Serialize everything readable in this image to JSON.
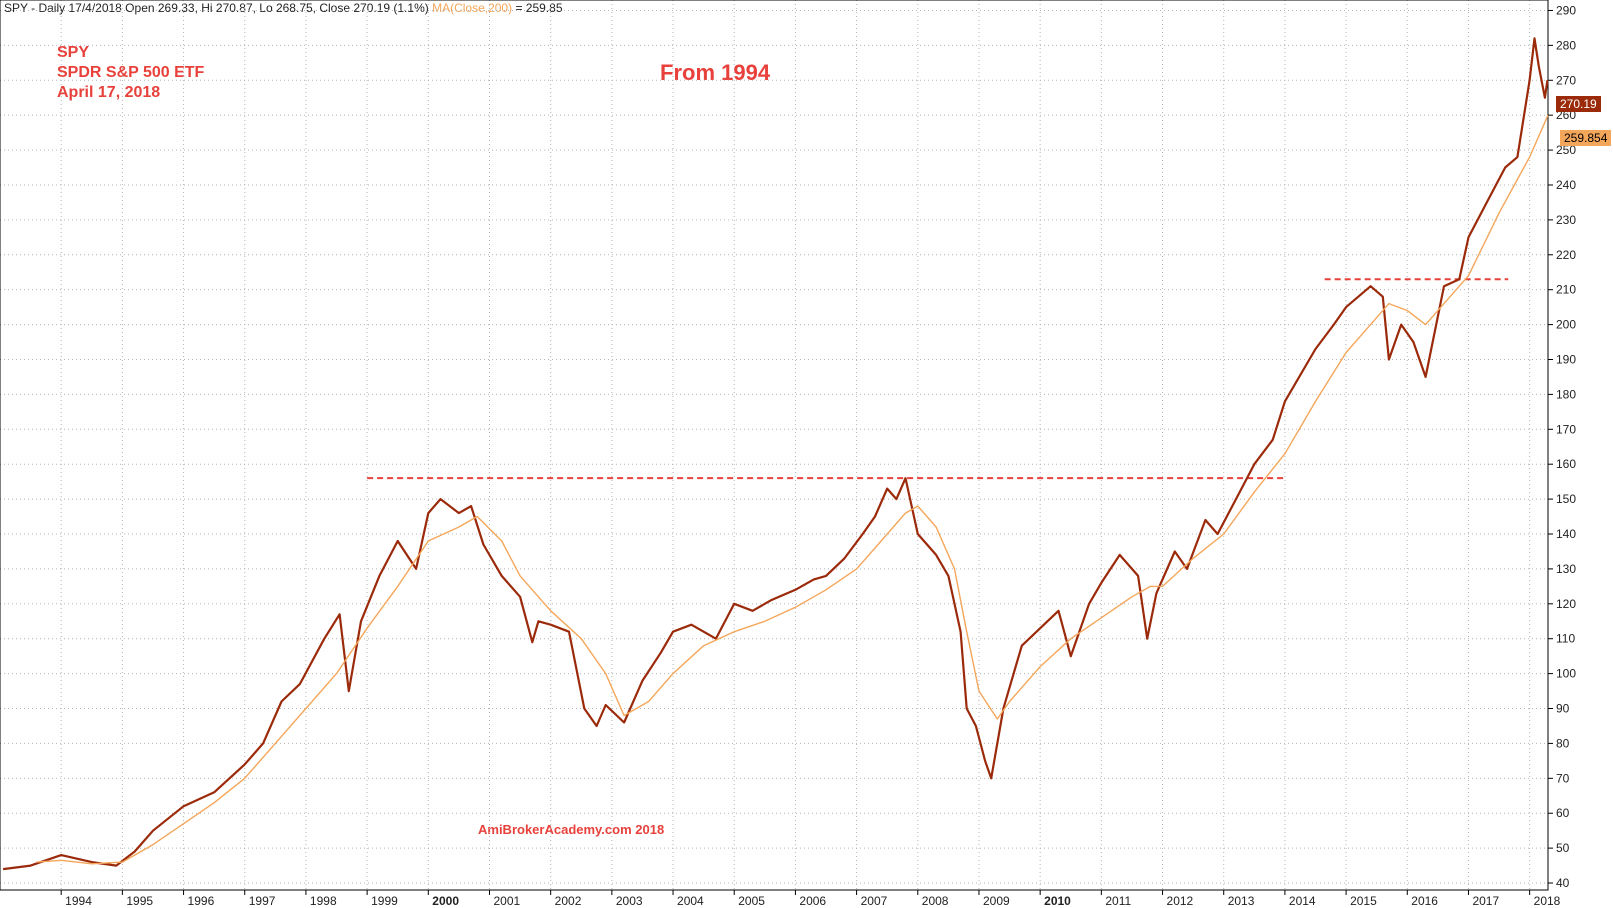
{
  "header": {
    "text": "SPY - Daily 17/4/2018 Open 269.33, Hi 270.87, Lo 268.75, Close 270.19 (1.1%)",
    "ma_label": "MA(Close,200)",
    "ma_value_text": " = 259.85"
  },
  "annotations": {
    "symbol": "SPY",
    "name": "SPDR S&P 500 ETF",
    "date": "April 17, 2018",
    "title": "From 1994",
    "watermark": "AmiBrokerAcademy.com  2018"
  },
  "badges": {
    "close": "270.19",
    "ma": "259.854"
  },
  "colors": {
    "price": "#9b2a0b",
    "ma": "#f4a65a",
    "resistance": "#e8413c",
    "grid": "#b4b4b4",
    "annotation": "#e8413c"
  },
  "chart_data": {
    "type": "line",
    "title": "",
    "xlabel": "",
    "ylabel": "",
    "ylim": [
      38,
      293
    ],
    "xlim": [
      1993.0,
      2018.3
    ],
    "yticks": [
      40,
      50,
      60,
      70,
      80,
      90,
      100,
      110,
      120,
      130,
      140,
      150,
      160,
      170,
      180,
      190,
      200,
      210,
      220,
      230,
      240,
      250,
      260,
      270,
      280,
      290
    ],
    "xticks": [
      "1994",
      "1995",
      "1996",
      "1997",
      "1998",
      "1999",
      "2000",
      "2001",
      "2002",
      "2003",
      "2004",
      "2005",
      "2006",
      "2007",
      "2008",
      "2009",
      "2010",
      "2011",
      "2012",
      "2013",
      "2014",
      "2015",
      "2016",
      "2017",
      "2018"
    ],
    "bold_xticks": [
      "2000",
      "2010"
    ],
    "grid": true,
    "y_axis_side": "right",
    "series": [
      {
        "style": "price",
        "x": [
          1993.05,
          1993.5,
          1994.0,
          1994.5,
          1994.9,
          1995.2,
          1995.5,
          1996.0,
          1996.5,
          1997.0,
          1997.3,
          1997.6,
          1997.9,
          1998.3,
          1998.55,
          1998.7,
          1998.9,
          1999.2,
          1999.5,
          1999.8,
          2000.0,
          2000.2,
          2000.5,
          2000.7,
          2000.9,
          2001.2,
          2001.5,
          2001.7,
          2001.8,
          2002.0,
          2002.3,
          2002.55,
          2002.75,
          2002.9,
          2003.2,
          2003.5,
          2003.8,
          2004.0,
          2004.3,
          2004.7,
          2005.0,
          2005.3,
          2005.6,
          2006.0,
          2006.3,
          2006.5,
          2006.8,
          2007.1,
          2007.3,
          2007.5,
          2007.65,
          2007.8,
          2008.0,
          2008.3,
          2008.5,
          2008.7,
          2008.8,
          2008.95,
          2009.1,
          2009.2,
          2009.4,
          2009.7,
          2010.0,
          2010.3,
          2010.5,
          2010.8,
          2011.0,
          2011.3,
          2011.6,
          2011.75,
          2011.9,
          2012.2,
          2012.4,
          2012.7,
          2012.9,
          2013.2,
          2013.5,
          2013.8,
          2014.0,
          2014.5,
          2014.8,
          2015.0,
          2015.4,
          2015.6,
          2015.7,
          2015.9,
          2016.1,
          2016.3,
          2016.6,
          2016.85,
          2017.0,
          2017.3,
          2017.6,
          2017.8,
          2018.0,
          2018.08,
          2018.15,
          2018.25,
          2018.29
        ],
        "y": [
          44,
          45,
          48,
          46,
          45,
          49,
          55,
          62,
          66,
          74,
          80,
          92,
          97,
          110,
          117,
          95,
          115,
          128,
          138,
          130,
          146,
          150,
          146,
          148,
          137,
          128,
          122,
          109,
          115,
          114,
          112,
          90,
          85,
          91,
          86,
          98,
          106,
          112,
          114,
          110,
          120,
          118,
          121,
          124,
          127,
          128,
          133,
          140,
          145,
          153,
          150,
          156,
          140,
          134,
          128,
          112,
          90,
          85,
          75,
          70,
          90,
          108,
          113,
          118,
          105,
          120,
          126,
          134,
          128,
          110,
          123,
          135,
          130,
          144,
          140,
          150,
          160,
          167,
          178,
          193,
          200,
          205,
          211,
          208,
          190,
          200,
          195,
          185,
          211,
          213,
          225,
          235,
          245,
          248,
          270,
          282,
          274,
          265,
          270
        ]
      },
      {
        "style": "ma",
        "x": [
          1993.6,
          1994.0,
          1994.5,
          1995.0,
          1995.5,
          1996.0,
          1996.5,
          1997.0,
          1997.5,
          1998.0,
          1998.5,
          1999.0,
          1999.5,
          2000.0,
          2000.5,
          2000.8,
          2001.2,
          2001.5,
          2002.0,
          2002.5,
          2002.9,
          2003.2,
          2003.6,
          2004.0,
          2004.5,
          2005.0,
          2005.5,
          2006.0,
          2006.5,
          2007.0,
          2007.3,
          2007.6,
          2007.8,
          2008.0,
          2008.3,
          2008.6,
          2008.8,
          2009.0,
          2009.3,
          2009.5,
          2010.0,
          2010.5,
          2011.0,
          2011.5,
          2011.8,
          2012.0,
          2012.5,
          2013.0,
          2013.5,
          2014.0,
          2014.5,
          2015.0,
          2015.4,
          2015.7,
          2016.0,
          2016.3,
          2016.6,
          2017.0,
          2017.5,
          2018.0,
          2018.3
        ],
        "y": [
          46,
          46.5,
          45.5,
          46,
          51,
          57,
          63,
          70,
          80,
          90,
          100,
          113,
          125,
          138,
          142,
          145,
          138,
          128,
          118,
          110,
          100,
          88,
          92,
          100,
          108,
          112,
          115,
          119,
          124,
          130,
          136,
          142,
          146,
          148,
          142,
          130,
          112,
          95,
          87,
          92,
          102,
          110,
          116,
          122,
          125,
          125,
          133,
          140,
          152,
          163,
          178,
          192,
          200,
          206,
          204,
          200,
          206,
          214,
          232,
          248,
          260
        ]
      }
    ],
    "reference_lines": [
      {
        "y": 156,
        "x_start": 1999.0,
        "x_end": 2014.0
      },
      {
        "y": 213,
        "x_start": 2014.65,
        "x_end": 2017.65
      }
    ]
  }
}
